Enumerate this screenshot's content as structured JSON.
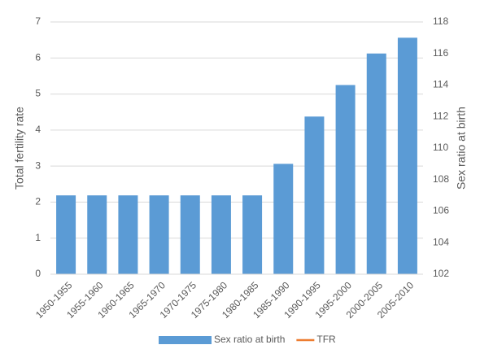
{
  "chart_data": {
    "type": "bar",
    "categories": [
      "1950-1955",
      "1955-1960",
      "1960-1965",
      "1965-1970",
      "1970-1975",
      "1975-1980",
      "1980-1985",
      "1985-1990",
      "1990-1995",
      "1995-2000",
      "2000-2005",
      "2005-2010"
    ],
    "series": [
      {
        "name": "Sex ratio at birth",
        "color": "#5b9bd5",
        "axis": "y2",
        "type": "bar",
        "values": [
          107,
          107,
          107,
          107,
          107,
          107,
          107,
          109,
          112,
          114,
          116,
          117
        ]
      },
      {
        "name": "TFR",
        "color": "#ed7d31",
        "type": "line",
        "values": [
          null,
          null,
          null,
          null,
          null,
          null,
          null,
          null,
          null,
          null,
          null,
          null
        ]
      }
    ],
    "ylabel": "Total fertility rate",
    "y2label": "Sex ratio at birth",
    "ylim": [
      0,
      7
    ],
    "yticks": [
      0,
      1,
      2,
      3,
      4,
      5,
      6,
      7
    ],
    "y2lim": [
      102,
      118
    ],
    "y2ticks": [
      102,
      104,
      106,
      108,
      110,
      112,
      114,
      116,
      118
    ],
    "grid": true,
    "legend": "bottom"
  }
}
